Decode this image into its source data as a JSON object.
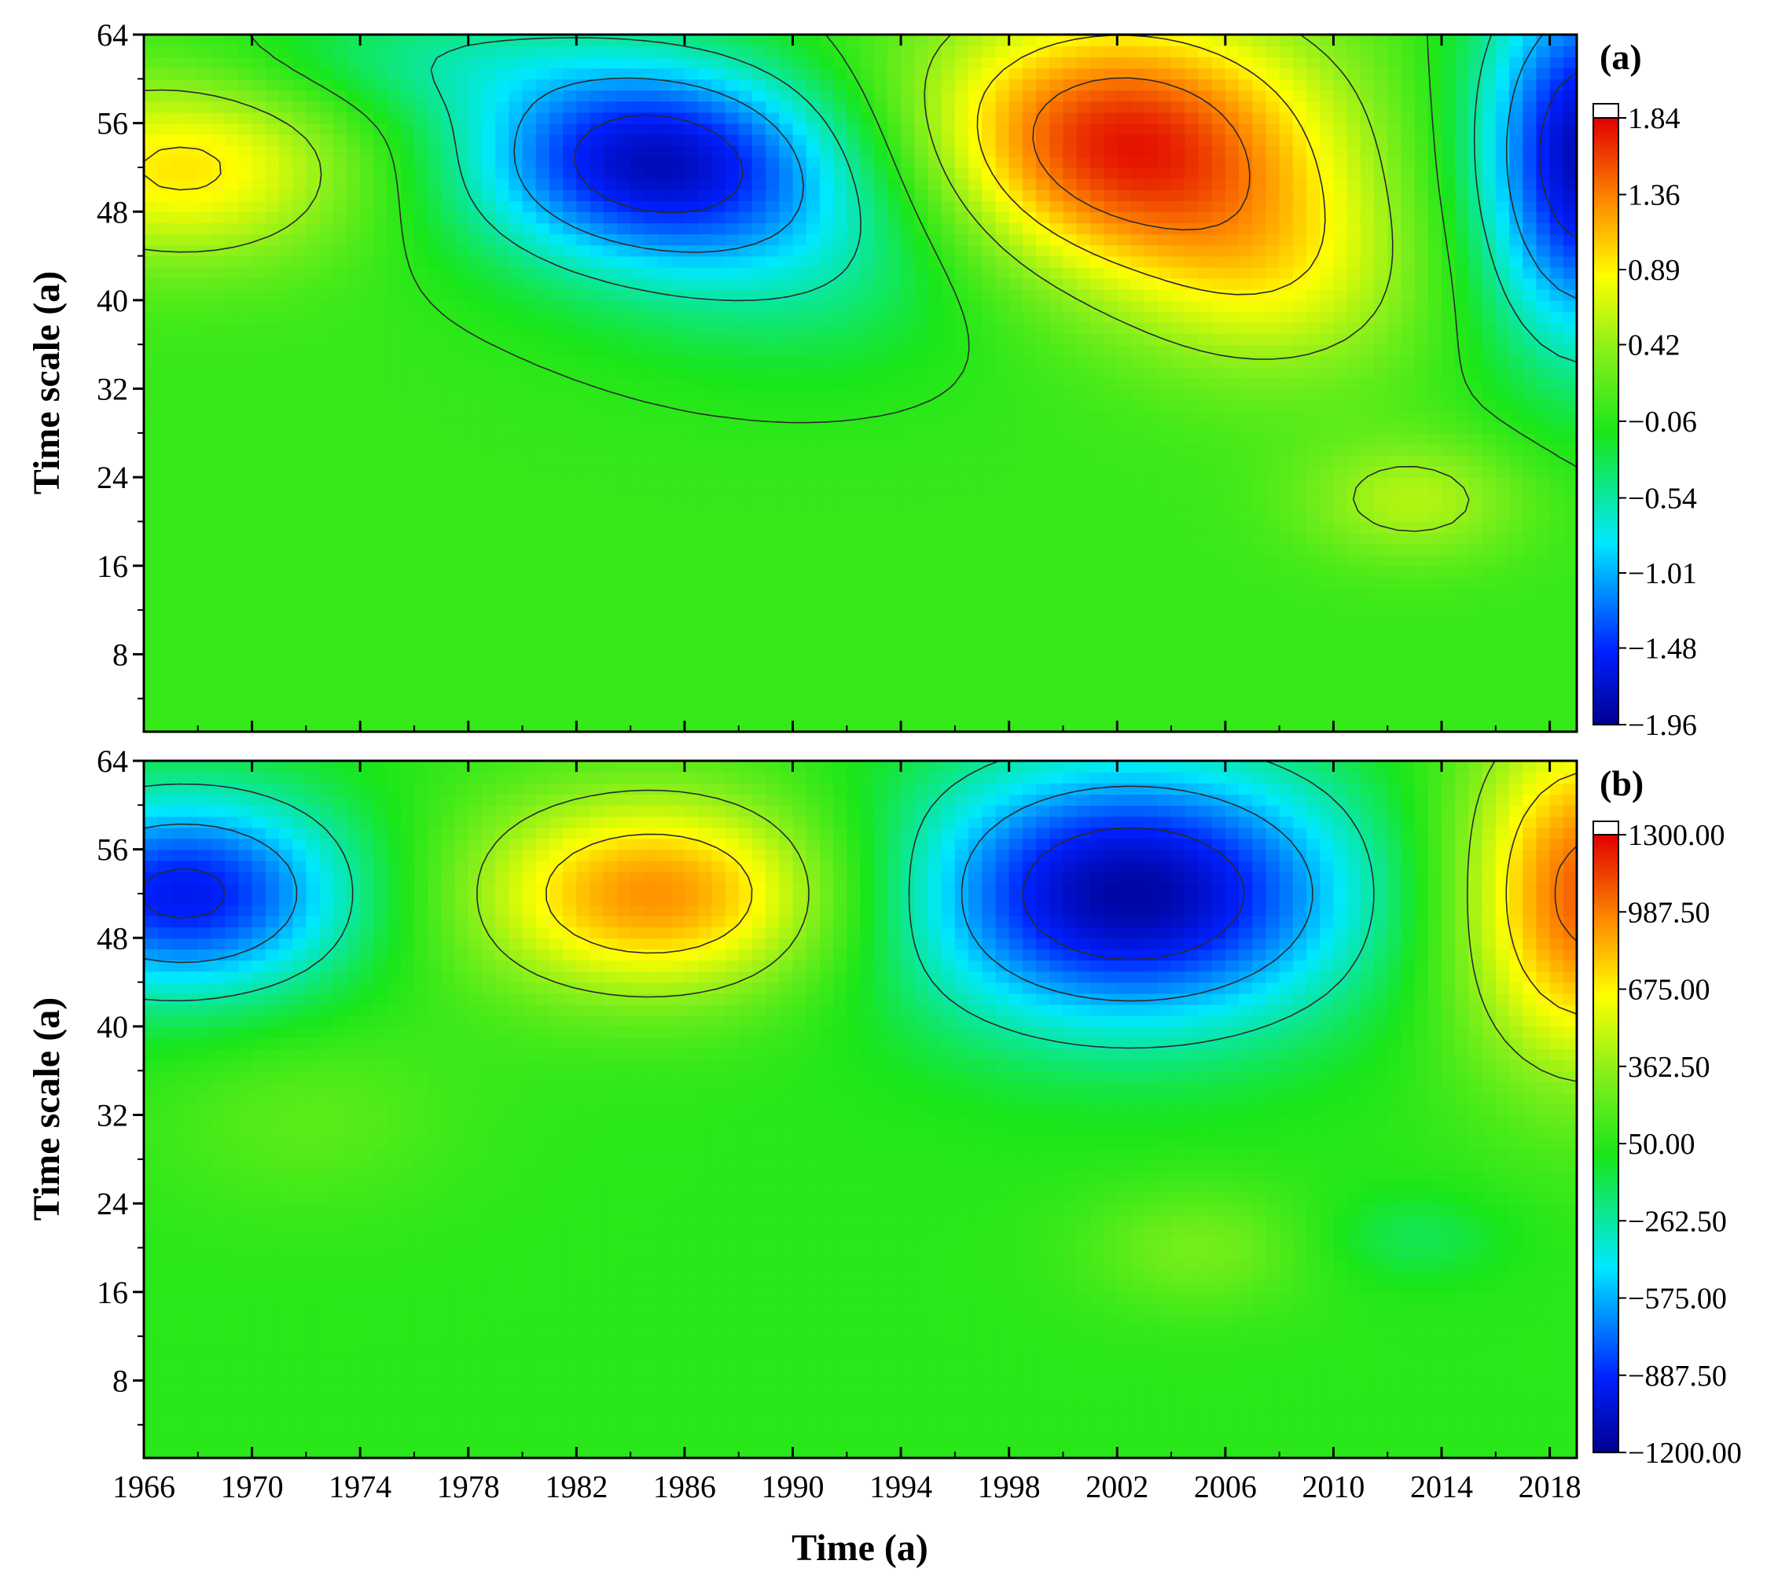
{
  "chart_data": [
    {
      "type": "heatmap",
      "panel_label": "(a)",
      "xlabel": "",
      "ylabel": "Time scale (a)",
      "xlim": [
        1966,
        2019
      ],
      "ylim": [
        1,
        64
      ],
      "xticks": [
        1966,
        1970,
        1974,
        1978,
        1982,
        1986,
        1990,
        1994,
        1998,
        2002,
        2006,
        2010,
        2014,
        2018
      ],
      "xtick_labels": [],
      "yticks": [
        8,
        16,
        24,
        32,
        40,
        48,
        56,
        64
      ],
      "ytick_labels": [
        "8",
        "16",
        "24",
        "32",
        "40",
        "48",
        "56",
        "64"
      ],
      "colorbar": {
        "min": -1.96,
        "max": 1.84,
        "ticks": [
          1.84,
          1.36,
          0.89,
          0.42,
          -0.06,
          -0.54,
          -1.01,
          -1.48,
          -1.96
        ],
        "tick_labels": [
          "1.84",
          "1.36",
          "0.89",
          "0.42",
          "−0.06",
          "−0.54",
          "−1.01",
          "−1.48",
          "−1.96"
        ]
      },
      "background_value": 0.0,
      "features": [
        {
          "x": 1967.5,
          "y": 52,
          "sx": 4.5,
          "sy": 6,
          "value": 0.95
        },
        {
          "x": 1984.5,
          "y": 53,
          "sx": 4.8,
          "sy": 6.5,
          "value": -1.55
        },
        {
          "x": 1991,
          "y": 46,
          "sx": 6,
          "sy": 8,
          "value": -0.6
        },
        {
          "x": 2002,
          "y": 54,
          "sx": 5.5,
          "sy": 8.5,
          "value": 1.78
        },
        {
          "x": 2008,
          "y": 42,
          "sx": 4,
          "sy": 7,
          "value": 0.6
        },
        {
          "x": 2019.5,
          "y": 53,
          "sx": 3,
          "sy": 12,
          "value": -1.85
        },
        {
          "x": 2013,
          "y": 22,
          "sx": 3,
          "sy": 4,
          "value": 0.55
        },
        {
          "x": 1976,
          "y": 62,
          "sx": 5,
          "sy": 4,
          "value": -0.4
        }
      ],
      "contour_levels": [
        -1.48,
        -1.01,
        -0.54,
        -0.06,
        0.42,
        0.89,
        1.36
      ]
    },
    {
      "type": "heatmap",
      "panel_label": "(b)",
      "xlabel": "Time (a)",
      "ylabel": "Time scale (a)",
      "xlim": [
        1966,
        2019
      ],
      "ylim": [
        1,
        64
      ],
      "xticks": [
        1966,
        1970,
        1974,
        1978,
        1982,
        1986,
        1990,
        1994,
        1998,
        2002,
        2006,
        2010,
        2014,
        2018
      ],
      "xtick_labels": [
        "1966",
        "1970",
        "1974",
        "1978",
        "1982",
        "1986",
        "1990",
        "1994",
        "1998",
        "2002",
        "2006",
        "2010",
        "2014",
        "2018"
      ],
      "yticks": [
        8,
        16,
        24,
        32,
        40,
        48,
        56,
        64
      ],
      "ytick_labels": [
        "8",
        "16",
        "24",
        "32",
        "40",
        "48",
        "56",
        "64"
      ],
      "colorbar": {
        "min": -1200,
        "max": 1300,
        "ticks": [
          1300,
          987.5,
          675,
          362.5,
          50,
          -262.5,
          -575,
          -887.5,
          -1200
        ],
        "tick_labels": [
          "1300.00",
          "987.50",
          "675.00",
          "362.50",
          "50.00",
          "−262.50",
          "−575.00",
          "−887.50",
          "−1200.00"
        ]
      },
      "background_value": 50,
      "features": [
        {
          "x": 1967.5,
          "y": 52,
          "sx": 4.5,
          "sy": 6.5,
          "value": -950
        },
        {
          "x": 1985,
          "y": 52,
          "sx": 5,
          "sy": 6.5,
          "value": 950
        },
        {
          "x": 2002.5,
          "y": 52,
          "sx": 6,
          "sy": 8.5,
          "value": -1150
        },
        {
          "x": 2019.5,
          "y": 52,
          "sx": 3.5,
          "sy": 11,
          "value": 1100
        },
        {
          "x": 2005,
          "y": 20,
          "sx": 3,
          "sy": 4,
          "value": 280
        },
        {
          "x": 2013,
          "y": 21,
          "sx": 2.5,
          "sy": 3,
          "value": -120
        },
        {
          "x": 1972,
          "y": 32,
          "sx": 4,
          "sy": 6,
          "value": 200
        }
      ],
      "contour_levels": [
        -887.5,
        -575,
        -262.5,
        362.5,
        675,
        987.5
      ]
    }
  ]
}
